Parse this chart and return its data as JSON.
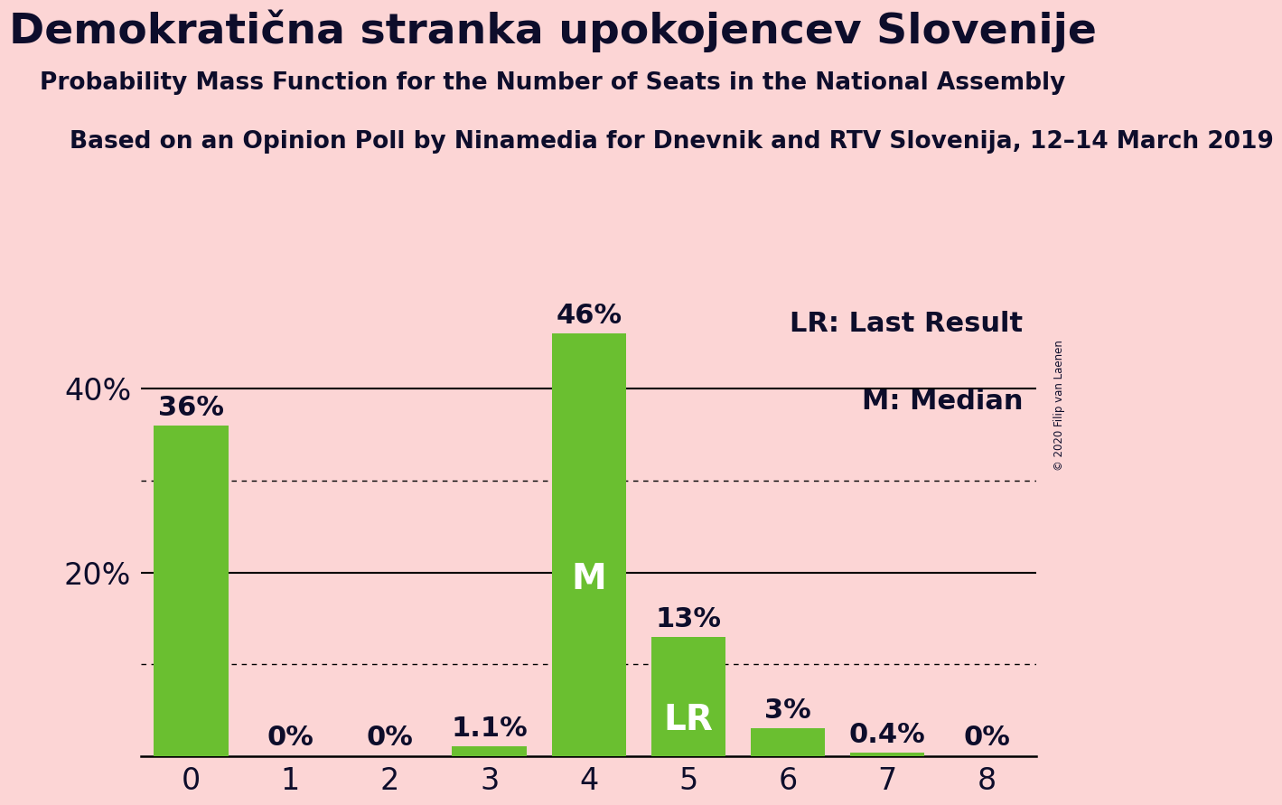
{
  "title": "Demokratična stranka upokojencev Slovenije",
  "subtitle": "Probability Mass Function for the Number of Seats in the National Assembly",
  "source_line": "Based on an Opinion Poll by Ninamedia for Dnevnik and RTV Slovenija, 12–14 March 2019",
  "copyright": "© 2020 Filip van Laenen",
  "categories": [
    0,
    1,
    2,
    3,
    4,
    5,
    6,
    7,
    8
  ],
  "values": [
    36,
    0,
    0,
    1.1,
    46,
    13,
    3,
    0.4,
    0
  ],
  "labels": [
    "36%",
    "0%",
    "0%",
    "1.1%",
    "46%",
    "13%",
    "3%",
    "0.4%",
    "0%"
  ],
  "bar_color": "#6abf30",
  "bg_color": "#fcd5d5",
  "text_color": "#0d0d2b",
  "lr_bar": 5,
  "median_bar": 4,
  "lr_label": "LR",
  "median_label": "M",
  "ylim": [
    0,
    50
  ],
  "solid_gridlines": [
    20,
    40
  ],
  "dotted_gridlines": [
    10,
    30
  ],
  "title_fontsize": 34,
  "subtitle_fontsize": 19,
  "source_fontsize": 19,
  "bar_label_fontsize": 22,
  "axis_tick_fontsize": 24,
  "annotation_fontsize": 28,
  "legend_fontsize": 22
}
